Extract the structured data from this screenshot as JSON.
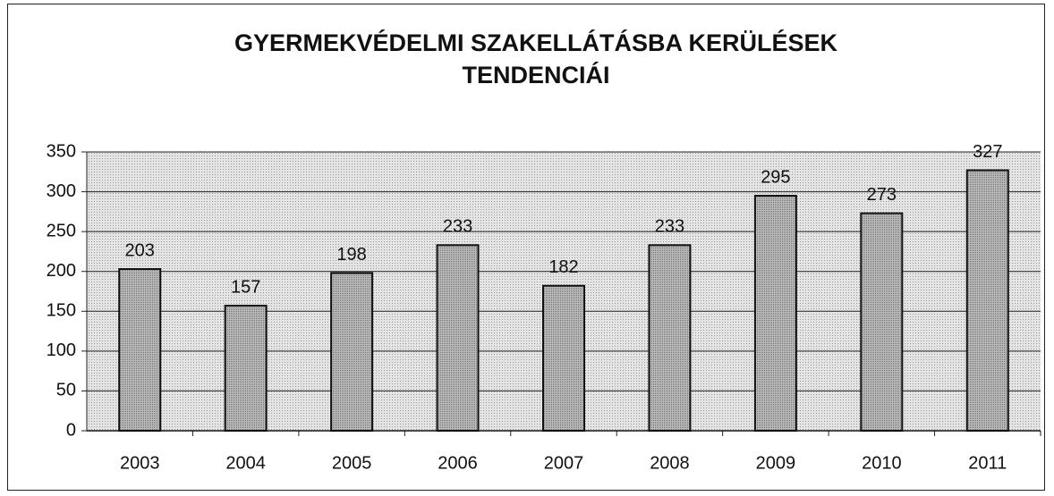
{
  "chart_data": {
    "type": "bar",
    "title": "GYERMEKVÉDELMI SZAKELLÁTÁSBA KERÜLÉSEK TENDENCIÁI",
    "categories": [
      "2003",
      "2004",
      "2005",
      "2006",
      "2007",
      "2008",
      "2009",
      "2010",
      "2011"
    ],
    "values": [
      203,
      157,
      198,
      233,
      182,
      233,
      295,
      273,
      327
    ],
    "color": "#a6a6a6",
    "ylim": [
      0,
      350
    ],
    "yticks": [
      0,
      50,
      100,
      150,
      200,
      250,
      300,
      350
    ],
    "grid": true
  }
}
